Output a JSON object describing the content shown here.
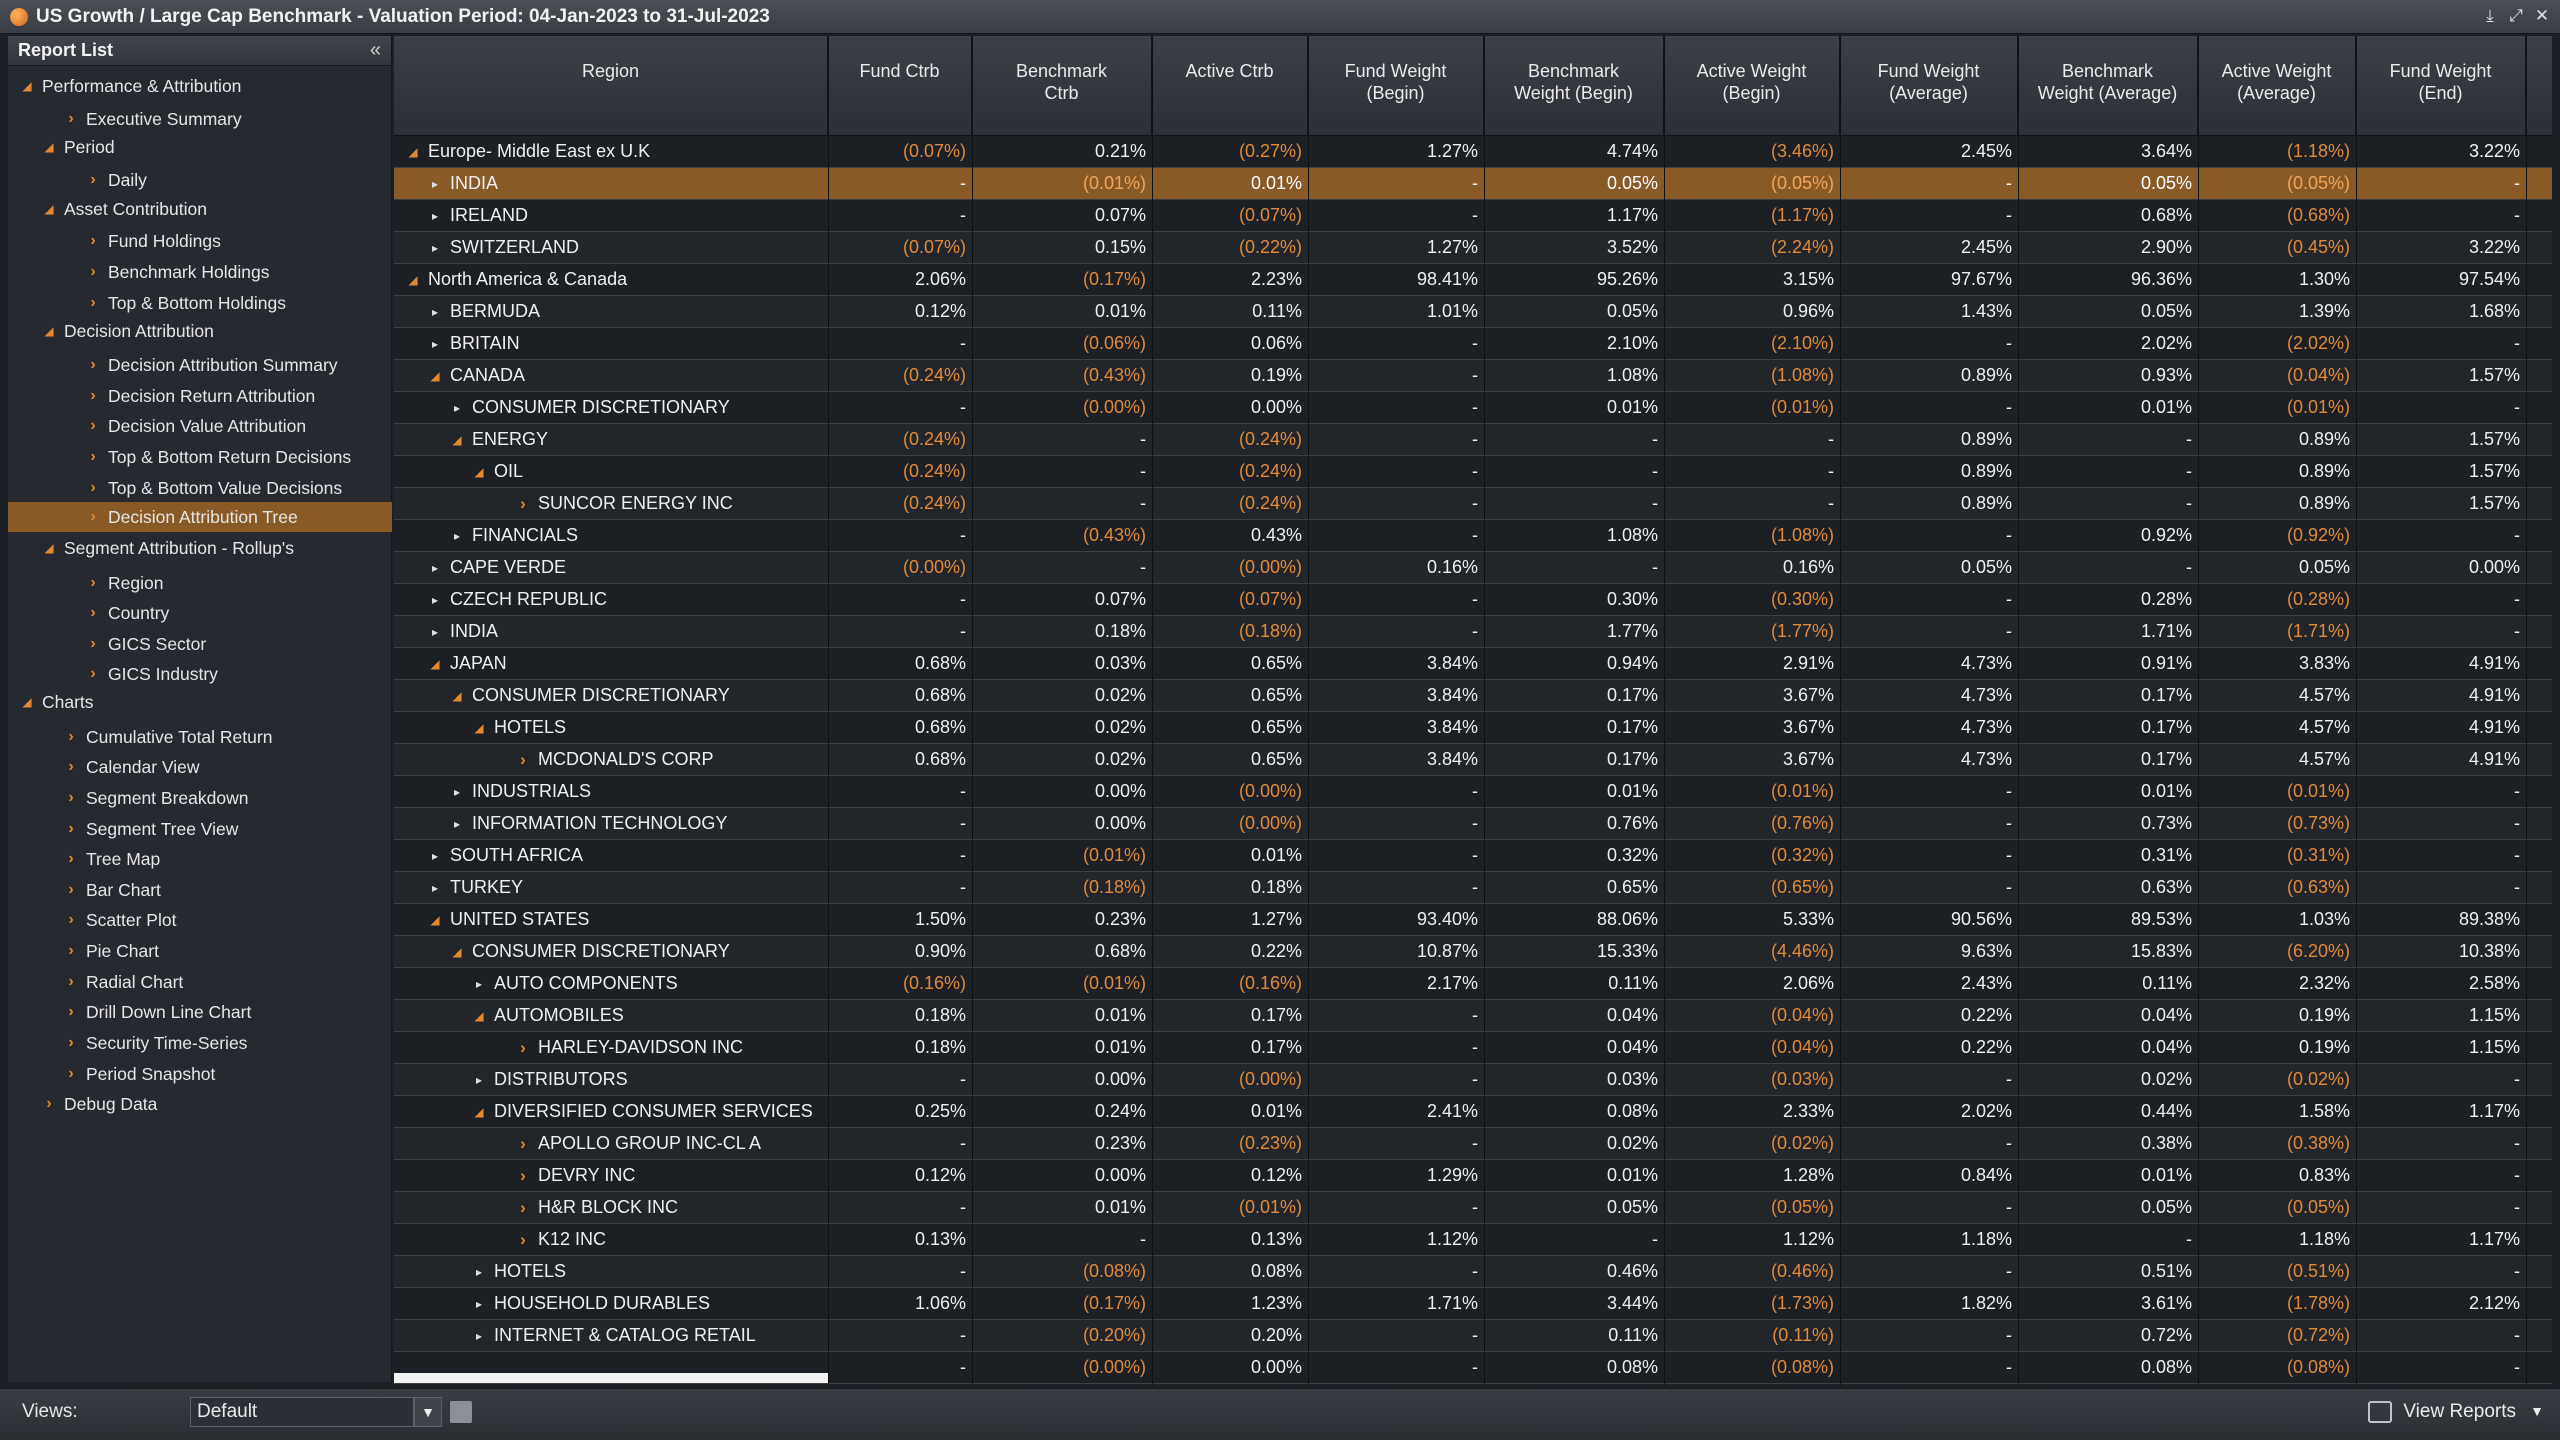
{
  "window": {
    "title": "US Growth / Large Cap Benchmark - Valuation Period: 04-Jan-2023 to 31-Jul-2023"
  },
  "sidebar": {
    "title": "Report List",
    "items": [
      {
        "label": "Performance & Attribution",
        "level": 0,
        "type": "open"
      },
      {
        "label": "Executive Summary",
        "level": 2,
        "type": "leaf"
      },
      {
        "label": "Period",
        "level": 1,
        "type": "open"
      },
      {
        "label": "Daily",
        "level": 3,
        "type": "leaf"
      },
      {
        "label": "Asset Contribution",
        "level": 1,
        "type": "open"
      },
      {
        "label": "Fund Holdings",
        "level": 3,
        "type": "leaf"
      },
      {
        "label": "Benchmark Holdings",
        "level": 3,
        "type": "leaf"
      },
      {
        "label": "Top & Bottom Holdings",
        "level": 3,
        "type": "leaf"
      },
      {
        "label": "Decision Attribution",
        "level": 1,
        "type": "open"
      },
      {
        "label": "Decision Attribution Summary",
        "level": 3,
        "type": "leaf"
      },
      {
        "label": "Decision Return Attribution",
        "level": 3,
        "type": "leaf"
      },
      {
        "label": "Decision Value Attribution",
        "level": 3,
        "type": "leaf"
      },
      {
        "label": "Top & Bottom Return Decisions",
        "level": 3,
        "type": "leaf"
      },
      {
        "label": "Top & Bottom Value Decisions",
        "level": 3,
        "type": "leaf"
      },
      {
        "label": "Decision Attribution Tree",
        "level": 3,
        "type": "leaf",
        "selected": true
      },
      {
        "label": "Segment Attribution - Rollup's",
        "level": 1,
        "type": "open"
      },
      {
        "label": "Region",
        "level": 3,
        "type": "leaf"
      },
      {
        "label": "Country",
        "level": 3,
        "type": "leaf"
      },
      {
        "label": "GICS Sector",
        "level": 3,
        "type": "leaf"
      },
      {
        "label": "GICS Industry",
        "level": 3,
        "type": "leaf"
      },
      {
        "label": "Charts",
        "level": 0,
        "type": "open"
      },
      {
        "label": "Cumulative Total Return",
        "level": 2,
        "type": "leaf"
      },
      {
        "label": "Calendar View",
        "level": 2,
        "type": "leaf"
      },
      {
        "label": "Segment Breakdown",
        "level": 2,
        "type": "leaf"
      },
      {
        "label": "Segment Tree View",
        "level": 2,
        "type": "leaf"
      },
      {
        "label": "Tree Map",
        "level": 2,
        "type": "leaf"
      },
      {
        "label": "Bar Chart",
        "level": 2,
        "type": "leaf"
      },
      {
        "label": "Scatter Plot",
        "level": 2,
        "type": "leaf"
      },
      {
        "label": "Pie Chart",
        "level": 2,
        "type": "leaf"
      },
      {
        "label": "Radial Chart",
        "level": 2,
        "type": "leaf"
      },
      {
        "label": "Drill Down Line Chart",
        "level": 2,
        "type": "leaf"
      },
      {
        "label": "Security Time-Series",
        "level": 2,
        "type": "leaf"
      },
      {
        "label": "Period Snapshot",
        "level": 2,
        "type": "leaf"
      },
      {
        "label": "Debug Data",
        "level": 1,
        "type": "leaf"
      }
    ]
  },
  "table": {
    "columns": [
      "Region",
      "Fund Ctrb",
      "Benchmark\nCtrb",
      "Active Ctrb",
      "Fund Weight\n(Begin)",
      "Benchmark\nWeight (Begin)",
      "Active Weight\n(Begin)",
      "Fund Weight\n(Average)",
      "Benchmark\nWeight (Average)",
      "Active Weight\n(Average)",
      "Fund Weight\n(End)"
    ],
    "rows": [
      {
        "name": "Europe- Middle East ex U.K",
        "level": 0,
        "tog": "open",
        "v": [
          "(0.07%)",
          "0.21%",
          "(0.27%)",
          "1.27%",
          "4.74%",
          "(3.46%)",
          "2.45%",
          "3.64%",
          "(1.18%)",
          "3.22%"
        ]
      },
      {
        "name": "INDIA",
        "level": 1,
        "tog": "closed",
        "hl": true,
        "v": [
          "-",
          "(0.01%)",
          "0.01%",
          "-",
          "0.05%",
          "(0.05%)",
          "-",
          "0.05%",
          "(0.05%)",
          "-"
        ]
      },
      {
        "name": "IRELAND",
        "level": 1,
        "tog": "closed",
        "v": [
          "-",
          "0.07%",
          "(0.07%)",
          "-",
          "1.17%",
          "(1.17%)",
          "-",
          "0.68%",
          "(0.68%)",
          "-"
        ]
      },
      {
        "name": "SWITZERLAND",
        "level": 1,
        "tog": "closed",
        "v": [
          "(0.07%)",
          "0.15%",
          "(0.22%)",
          "1.27%",
          "3.52%",
          "(2.24%)",
          "2.45%",
          "2.90%",
          "(0.45%)",
          "3.22%"
        ]
      },
      {
        "name": "North America & Canada",
        "level": 0,
        "tog": "open",
        "v": [
          "2.06%",
          "(0.17%)",
          "2.23%",
          "98.41%",
          "95.26%",
          "3.15%",
          "97.67%",
          "96.36%",
          "1.30%",
          "97.54%"
        ]
      },
      {
        "name": "BERMUDA",
        "level": 1,
        "tog": "closed",
        "v": [
          "0.12%",
          "0.01%",
          "0.11%",
          "1.01%",
          "0.05%",
          "0.96%",
          "1.43%",
          "0.05%",
          "1.39%",
          "1.68%"
        ]
      },
      {
        "name": "BRITAIN",
        "level": 1,
        "tog": "closed",
        "v": [
          "-",
          "(0.06%)",
          "0.06%",
          "-",
          "2.10%",
          "(2.10%)",
          "-",
          "2.02%",
          "(2.02%)",
          "-"
        ]
      },
      {
        "name": "CANADA",
        "level": 1,
        "tog": "open",
        "v": [
          "(0.24%)",
          "(0.43%)",
          "0.19%",
          "-",
          "1.08%",
          "(1.08%)",
          "0.89%",
          "0.93%",
          "(0.04%)",
          "1.57%"
        ]
      },
      {
        "name": "CONSUMER DISCRETIONARY",
        "level": 2,
        "tog": "closed",
        "v": [
          "-",
          "(0.00%)",
          "0.00%",
          "-",
          "0.01%",
          "(0.01%)",
          "-",
          "0.01%",
          "(0.01%)",
          "-"
        ]
      },
      {
        "name": "ENERGY",
        "level": 2,
        "tog": "open",
        "v": [
          "(0.24%)",
          "-",
          "(0.24%)",
          "-",
          "-",
          "-",
          "0.89%",
          "-",
          "0.89%",
          "1.57%"
        ]
      },
      {
        "name": "OIL",
        "level": 3,
        "tog": "open",
        "v": [
          "(0.24%)",
          "-",
          "(0.24%)",
          "-",
          "-",
          "-",
          "0.89%",
          "-",
          "0.89%",
          "1.57%"
        ]
      },
      {
        "name": "SUNCOR ENERGY INC",
        "level": 5,
        "tog": "leaf",
        "v": [
          "(0.24%)",
          "-",
          "(0.24%)",
          "-",
          "-",
          "-",
          "0.89%",
          "-",
          "0.89%",
          "1.57%"
        ]
      },
      {
        "name": "FINANCIALS",
        "level": 2,
        "tog": "closed",
        "v": [
          "-",
          "(0.43%)",
          "0.43%",
          "-",
          "1.08%",
          "(1.08%)",
          "-",
          "0.92%",
          "(0.92%)",
          "-"
        ]
      },
      {
        "name": "CAPE VERDE",
        "level": 1,
        "tog": "closed",
        "v": [
          "(0.00%)",
          "-",
          "(0.00%)",
          "0.16%",
          "-",
          "0.16%",
          "0.05%",
          "-",
          "0.05%",
          "0.00%"
        ]
      },
      {
        "name": "CZECH REPUBLIC",
        "level": 1,
        "tog": "closed",
        "v": [
          "-",
          "0.07%",
          "(0.07%)",
          "-",
          "0.30%",
          "(0.30%)",
          "-",
          "0.28%",
          "(0.28%)",
          "-"
        ]
      },
      {
        "name": "INDIA",
        "level": 1,
        "tog": "closed",
        "v": [
          "-",
          "0.18%",
          "(0.18%)",
          "-",
          "1.77%",
          "(1.77%)",
          "-",
          "1.71%",
          "(1.71%)",
          "-"
        ]
      },
      {
        "name": "JAPAN",
        "level": 1,
        "tog": "open",
        "v": [
          "0.68%",
          "0.03%",
          "0.65%",
          "3.84%",
          "0.94%",
          "2.91%",
          "4.73%",
          "0.91%",
          "3.83%",
          "4.91%"
        ]
      },
      {
        "name": "CONSUMER DISCRETIONARY",
        "level": 2,
        "tog": "open",
        "v": [
          "0.68%",
          "0.02%",
          "0.65%",
          "3.84%",
          "0.17%",
          "3.67%",
          "4.73%",
          "0.17%",
          "4.57%",
          "4.91%"
        ]
      },
      {
        "name": "HOTELS",
        "level": 3,
        "tog": "open",
        "v": [
          "0.68%",
          "0.02%",
          "0.65%",
          "3.84%",
          "0.17%",
          "3.67%",
          "4.73%",
          "0.17%",
          "4.57%",
          "4.91%"
        ]
      },
      {
        "name": "MCDONALD'S CORP",
        "level": 5,
        "tog": "leaf",
        "v": [
          "0.68%",
          "0.02%",
          "0.65%",
          "3.84%",
          "0.17%",
          "3.67%",
          "4.73%",
          "0.17%",
          "4.57%",
          "4.91%"
        ]
      },
      {
        "name": "INDUSTRIALS",
        "level": 2,
        "tog": "closed",
        "v": [
          "-",
          "0.00%",
          "(0.00%)",
          "-",
          "0.01%",
          "(0.01%)",
          "-",
          "0.01%",
          "(0.01%)",
          "-"
        ]
      },
      {
        "name": "INFORMATION TECHNOLOGY",
        "level": 2,
        "tog": "closed",
        "v": [
          "-",
          "0.00%",
          "(0.00%)",
          "-",
          "0.76%",
          "(0.76%)",
          "-",
          "0.73%",
          "(0.73%)",
          "-"
        ]
      },
      {
        "name": "SOUTH AFRICA",
        "level": 1,
        "tog": "closed",
        "v": [
          "-",
          "(0.01%)",
          "0.01%",
          "-",
          "0.32%",
          "(0.32%)",
          "-",
          "0.31%",
          "(0.31%)",
          "-"
        ]
      },
      {
        "name": "TURKEY",
        "level": 1,
        "tog": "closed",
        "v": [
          "-",
          "(0.18%)",
          "0.18%",
          "-",
          "0.65%",
          "(0.65%)",
          "-",
          "0.63%",
          "(0.63%)",
          "-"
        ]
      },
      {
        "name": "UNITED STATES",
        "level": 1,
        "tog": "open",
        "v": [
          "1.50%",
          "0.23%",
          "1.27%",
          "93.40%",
          "88.06%",
          "5.33%",
          "90.56%",
          "89.53%",
          "1.03%",
          "89.38%"
        ]
      },
      {
        "name": "CONSUMER DISCRETIONARY",
        "level": 2,
        "tog": "open",
        "v": [
          "0.90%",
          "0.68%",
          "0.22%",
          "10.87%",
          "15.33%",
          "(4.46%)",
          "9.63%",
          "15.83%",
          "(6.20%)",
          "10.38%"
        ]
      },
      {
        "name": "AUTO COMPONENTS",
        "level": 3,
        "tog": "closed",
        "v": [
          "(0.16%)",
          "(0.01%)",
          "(0.16%)",
          "2.17%",
          "0.11%",
          "2.06%",
          "2.43%",
          "0.11%",
          "2.32%",
          "2.58%"
        ]
      },
      {
        "name": "AUTOMOBILES",
        "level": 3,
        "tog": "open",
        "v": [
          "0.18%",
          "0.01%",
          "0.17%",
          "-",
          "0.04%",
          "(0.04%)",
          "0.22%",
          "0.04%",
          "0.19%",
          "1.15%"
        ]
      },
      {
        "name": "HARLEY-DAVIDSON INC",
        "level": 5,
        "tog": "leaf",
        "v": [
          "0.18%",
          "0.01%",
          "0.17%",
          "-",
          "0.04%",
          "(0.04%)",
          "0.22%",
          "0.04%",
          "0.19%",
          "1.15%"
        ]
      },
      {
        "name": "DISTRIBUTORS",
        "level": 3,
        "tog": "closed",
        "v": [
          "-",
          "0.00%",
          "(0.00%)",
          "-",
          "0.03%",
          "(0.03%)",
          "-",
          "0.02%",
          "(0.02%)",
          "-"
        ]
      },
      {
        "name": "DIVERSIFIED CONSUMER SERVICES",
        "level": 3,
        "tog": "open",
        "v": [
          "0.25%",
          "0.24%",
          "0.01%",
          "2.41%",
          "0.08%",
          "2.33%",
          "2.02%",
          "0.44%",
          "1.58%",
          "1.17%"
        ]
      },
      {
        "name": "APOLLO GROUP INC-CL A",
        "level": 5,
        "tog": "leaf",
        "v": [
          "-",
          "0.23%",
          "(0.23%)",
          "-",
          "0.02%",
          "(0.02%)",
          "-",
          "0.38%",
          "(0.38%)",
          "-"
        ]
      },
      {
        "name": "DEVRY INC",
        "level": 5,
        "tog": "leaf",
        "v": [
          "0.12%",
          "0.00%",
          "0.12%",
          "1.29%",
          "0.01%",
          "1.28%",
          "0.84%",
          "0.01%",
          "0.83%",
          "-"
        ]
      },
      {
        "name": "H&R BLOCK INC",
        "level": 5,
        "tog": "leaf",
        "v": [
          "-",
          "0.01%",
          "(0.01%)",
          "-",
          "0.05%",
          "(0.05%)",
          "-",
          "0.05%",
          "(0.05%)",
          "-"
        ]
      },
      {
        "name": "K12 INC",
        "level": 5,
        "tog": "leaf",
        "v": [
          "0.13%",
          "-",
          "0.13%",
          "1.12%",
          "-",
          "1.12%",
          "1.18%",
          "-",
          "1.18%",
          "1.17%"
        ]
      },
      {
        "name": "HOTELS",
        "level": 3,
        "tog": "closed",
        "v": [
          "-",
          "(0.08%)",
          "0.08%",
          "-",
          "0.46%",
          "(0.46%)",
          "-",
          "0.51%",
          "(0.51%)",
          "-"
        ]
      },
      {
        "name": "HOUSEHOLD DURABLES",
        "level": 3,
        "tog": "closed",
        "v": [
          "1.06%",
          "(0.17%)",
          "1.23%",
          "1.71%",
          "3.44%",
          "(1.73%)",
          "1.82%",
          "3.61%",
          "(1.78%)",
          "2.12%"
        ]
      },
      {
        "name": "INTERNET & CATALOG RETAIL",
        "level": 3,
        "tog": "closed",
        "v": [
          "-",
          "(0.20%)",
          "0.20%",
          "-",
          "0.11%",
          "(0.11%)",
          "-",
          "0.72%",
          "(0.72%)",
          "-"
        ]
      },
      {
        "name": "",
        "level": 3,
        "tog": "none",
        "v": [
          "-",
          "(0.00%)",
          "0.00%",
          "-",
          "0.08%",
          "(0.08%)",
          "-",
          "0.08%",
          "(0.08%)",
          "-"
        ]
      }
    ]
  },
  "footer": {
    "views_label": "Views:",
    "views_value": "Default",
    "view_reports": "View Reports"
  }
}
